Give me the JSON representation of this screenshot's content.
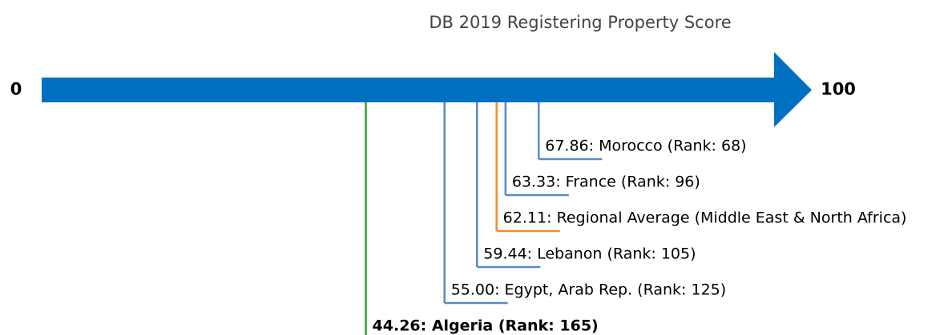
{
  "chart_data": {
    "type": "arrow-scale",
    "title": "DB 2019 Registering Property Score",
    "xlim": [
      0,
      100
    ],
    "xticks": [
      0,
      100
    ],
    "axis_color": "#0070c0",
    "entries": [
      {
        "value": 67.86,
        "label": "67.86: Morocco (Rank: 68)",
        "color": "#5a8ac6",
        "bold": false
      },
      {
        "value": 63.33,
        "label": "63.33: France (Rank: 96)",
        "color": "#5a8ac6",
        "bold": false
      },
      {
        "value": 62.11,
        "label": "62.11: Regional Average (Middle East & North Africa)",
        "color": "#f28e2b",
        "bold": false
      },
      {
        "value": 59.44,
        "label": "59.44: Lebanon (Rank: 105)",
        "color": "#5a8ac6",
        "bold": false
      },
      {
        "value": 55.0,
        "label": "55.00: Egypt, Arab Rep. (Rank: 125)",
        "color": "#5a8ac6",
        "bold": false
      },
      {
        "value": 44.26,
        "label": "44.26: Algeria (Rank: 165)",
        "color": "#2ca02c",
        "bold": true
      }
    ]
  }
}
